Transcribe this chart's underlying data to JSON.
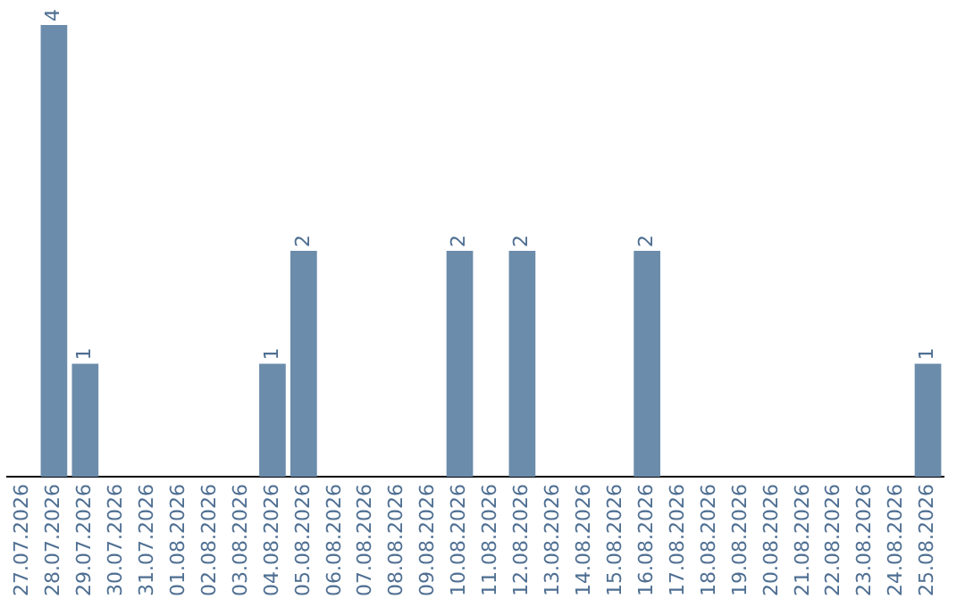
{
  "chart_data": {
    "type": "bar",
    "categories": [
      "27.07.2026",
      "28.07.2026",
      "29.07.2026",
      "30.07.2026",
      "31.07.2026",
      "01.08.2026",
      "02.08.2026",
      "03.08.2026",
      "04.08.2026",
      "05.08.2026",
      "06.08.2026",
      "07.08.2026",
      "08.08.2026",
      "09.08.2026",
      "10.08.2026",
      "11.08.2026",
      "12.08.2026",
      "13.08.2026",
      "14.08.2026",
      "15.08.2026",
      "16.08.2026",
      "17.08.2026",
      "18.08.2026",
      "19.08.2026",
      "20.08.2026",
      "21.08.2026",
      "22.08.2026",
      "23.08.2026",
      "24.08.2026",
      "25.08.2026"
    ],
    "values": [
      0,
      4,
      1,
      0,
      0,
      0,
      0,
      0,
      1,
      2,
      0,
      0,
      0,
      0,
      2,
      0,
      2,
      0,
      0,
      0,
      2,
      0,
      0,
      0,
      0,
      0,
      0,
      0,
      0,
      1
    ],
    "value_labels": [
      null,
      "4",
      "1",
      null,
      null,
      null,
      null,
      null,
      "1",
      "2",
      null,
      null,
      null,
      null,
      "2",
      null,
      "2",
      null,
      null,
      null,
      "2",
      null,
      null,
      null,
      null,
      null,
      null,
      null,
      null,
      "1"
    ],
    "color": "#6b8cab",
    "grid": false,
    "legend": false
  }
}
